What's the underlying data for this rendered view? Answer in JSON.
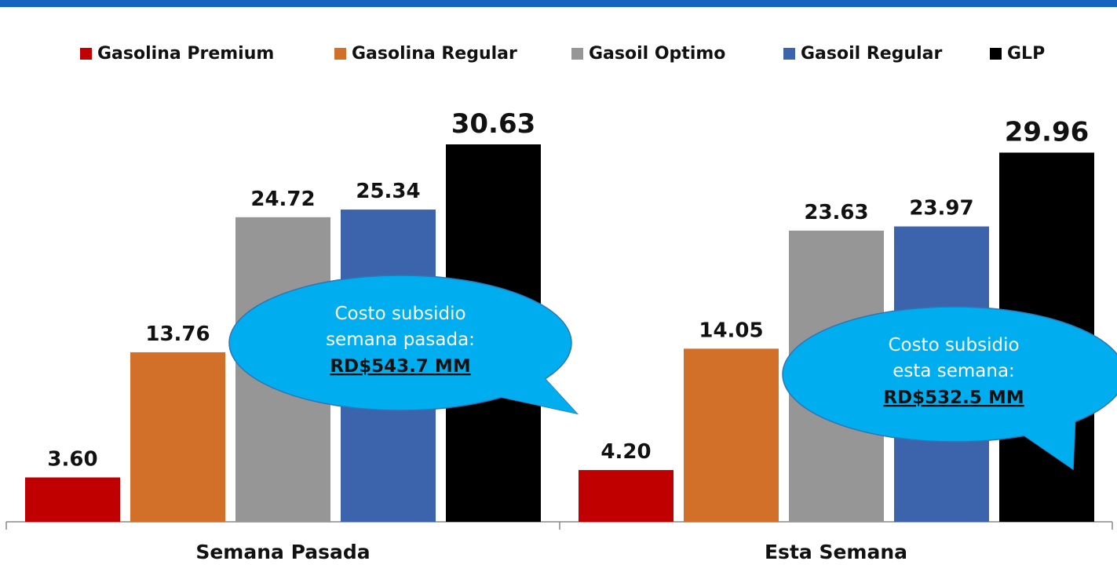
{
  "chart_data": {
    "type": "bar",
    "categories": [
      "Semana Pasada",
      "Esta Semana"
    ],
    "series": [
      {
        "name": "Gasolina Premium",
        "color": "#c00000",
        "values": [
          3.6,
          4.2
        ],
        "labels": [
          "3.60",
          "4.20"
        ]
      },
      {
        "name": "Gasolina Regular",
        "color": "#d2702a",
        "values": [
          13.76,
          14.05
        ],
        "labels": [
          "13.76",
          "14.05"
        ]
      },
      {
        "name": "Gasoil Optimo",
        "color": "#969696",
        "values": [
          24.72,
          23.63
        ],
        "labels": [
          "24.72",
          "23.63"
        ]
      },
      {
        "name": "Gasoil Regular",
        "color": "#3c64ad",
        "values": [
          25.34,
          23.97
        ],
        "labels": [
          "25.34",
          "23.97"
        ]
      },
      {
        "name": "GLP",
        "color": "#000000",
        "values": [
          30.63,
          29.96
        ],
        "labels": [
          "30.63",
          "29.96"
        ]
      }
    ],
    "ylim": [
      0,
      33
    ],
    "legend_position": "top",
    "grid": false,
    "annotations": [
      {
        "category": "Semana Pasada",
        "line1": "Costo subsidio",
        "line2": "semana pasada:",
        "amount": "RD$543.7 MM"
      },
      {
        "category": "Esta Semana",
        "line1": "Costo subsidio",
        "line2": "esta semana:",
        "amount": "RD$532.5 MM"
      }
    ]
  },
  "colors": {
    "header_bar": "#1565c0",
    "callout_fill": "#00aeef",
    "callout_stroke": "#2e75b6"
  }
}
